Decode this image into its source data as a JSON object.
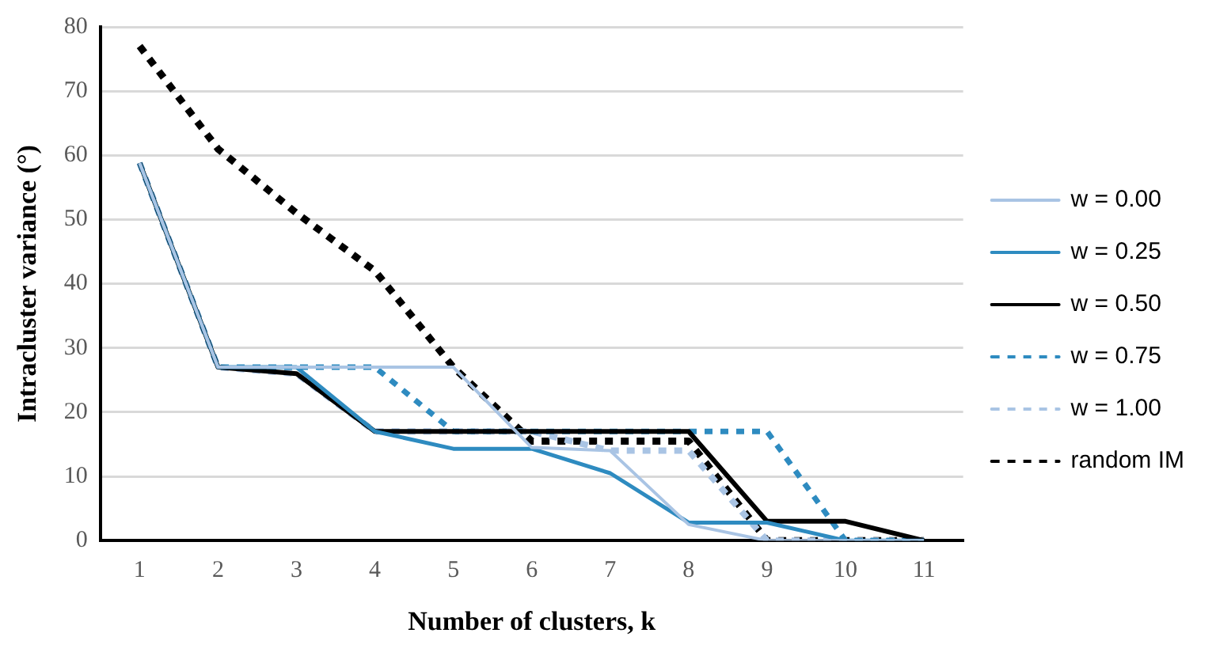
{
  "chart_data": {
    "type": "line",
    "xlabel": "Number of clusters, k",
    "ylabel": "Intracluster variance (°)",
    "categories": [
      "1",
      "2",
      "3",
      "4",
      "5",
      "6",
      "7",
      "8",
      "9",
      "10",
      "11"
    ],
    "series": [
      {
        "name": "w = 0.00",
        "color": "#a9c4e4",
        "line_style": "solid",
        "values": [
          58.8,
          27,
          27,
          27,
          27,
          14.5,
          14,
          2.5,
          0,
          0,
          0
        ]
      },
      {
        "name": "w = 0.25",
        "color": "#2e8bc0",
        "line_style": "solid",
        "values": [
          58.8,
          27,
          27,
          17,
          14.3,
          14.3,
          10.5,
          2.8,
          2.8,
          0,
          0
        ]
      },
      {
        "name": "w = 0.50",
        "color": "#000000",
        "line_style": "solid",
        "values": [
          58.8,
          27,
          26,
          17,
          17,
          17,
          17,
          17,
          3,
          3,
          0
        ]
      },
      {
        "name": "w = 0.75",
        "color": "#2e8bc0",
        "line_style": "dashed",
        "values": [
          58.8,
          27,
          27,
          27,
          17,
          17,
          17,
          17,
          17,
          0,
          0
        ]
      },
      {
        "name": "w = 1.00",
        "color": "#a9c4e4",
        "line_style": "dashed",
        "values": [
          58.8,
          27,
          26,
          17,
          17,
          17,
          14,
          14,
          0,
          0,
          0
        ]
      },
      {
        "name": "random IM",
        "color": "#000000",
        "line_style": "dashed",
        "values": [
          77,
          61,
          51,
          42,
          27,
          15.5,
          15.5,
          15.5,
          0,
          0,
          0
        ]
      }
    ],
    "ylim": [
      0,
      80
    ],
    "yticks": [
      0,
      10,
      20,
      30,
      40,
      50,
      60,
      70,
      80
    ],
    "grid": "y",
    "legend": "right",
    "marker": "none"
  }
}
